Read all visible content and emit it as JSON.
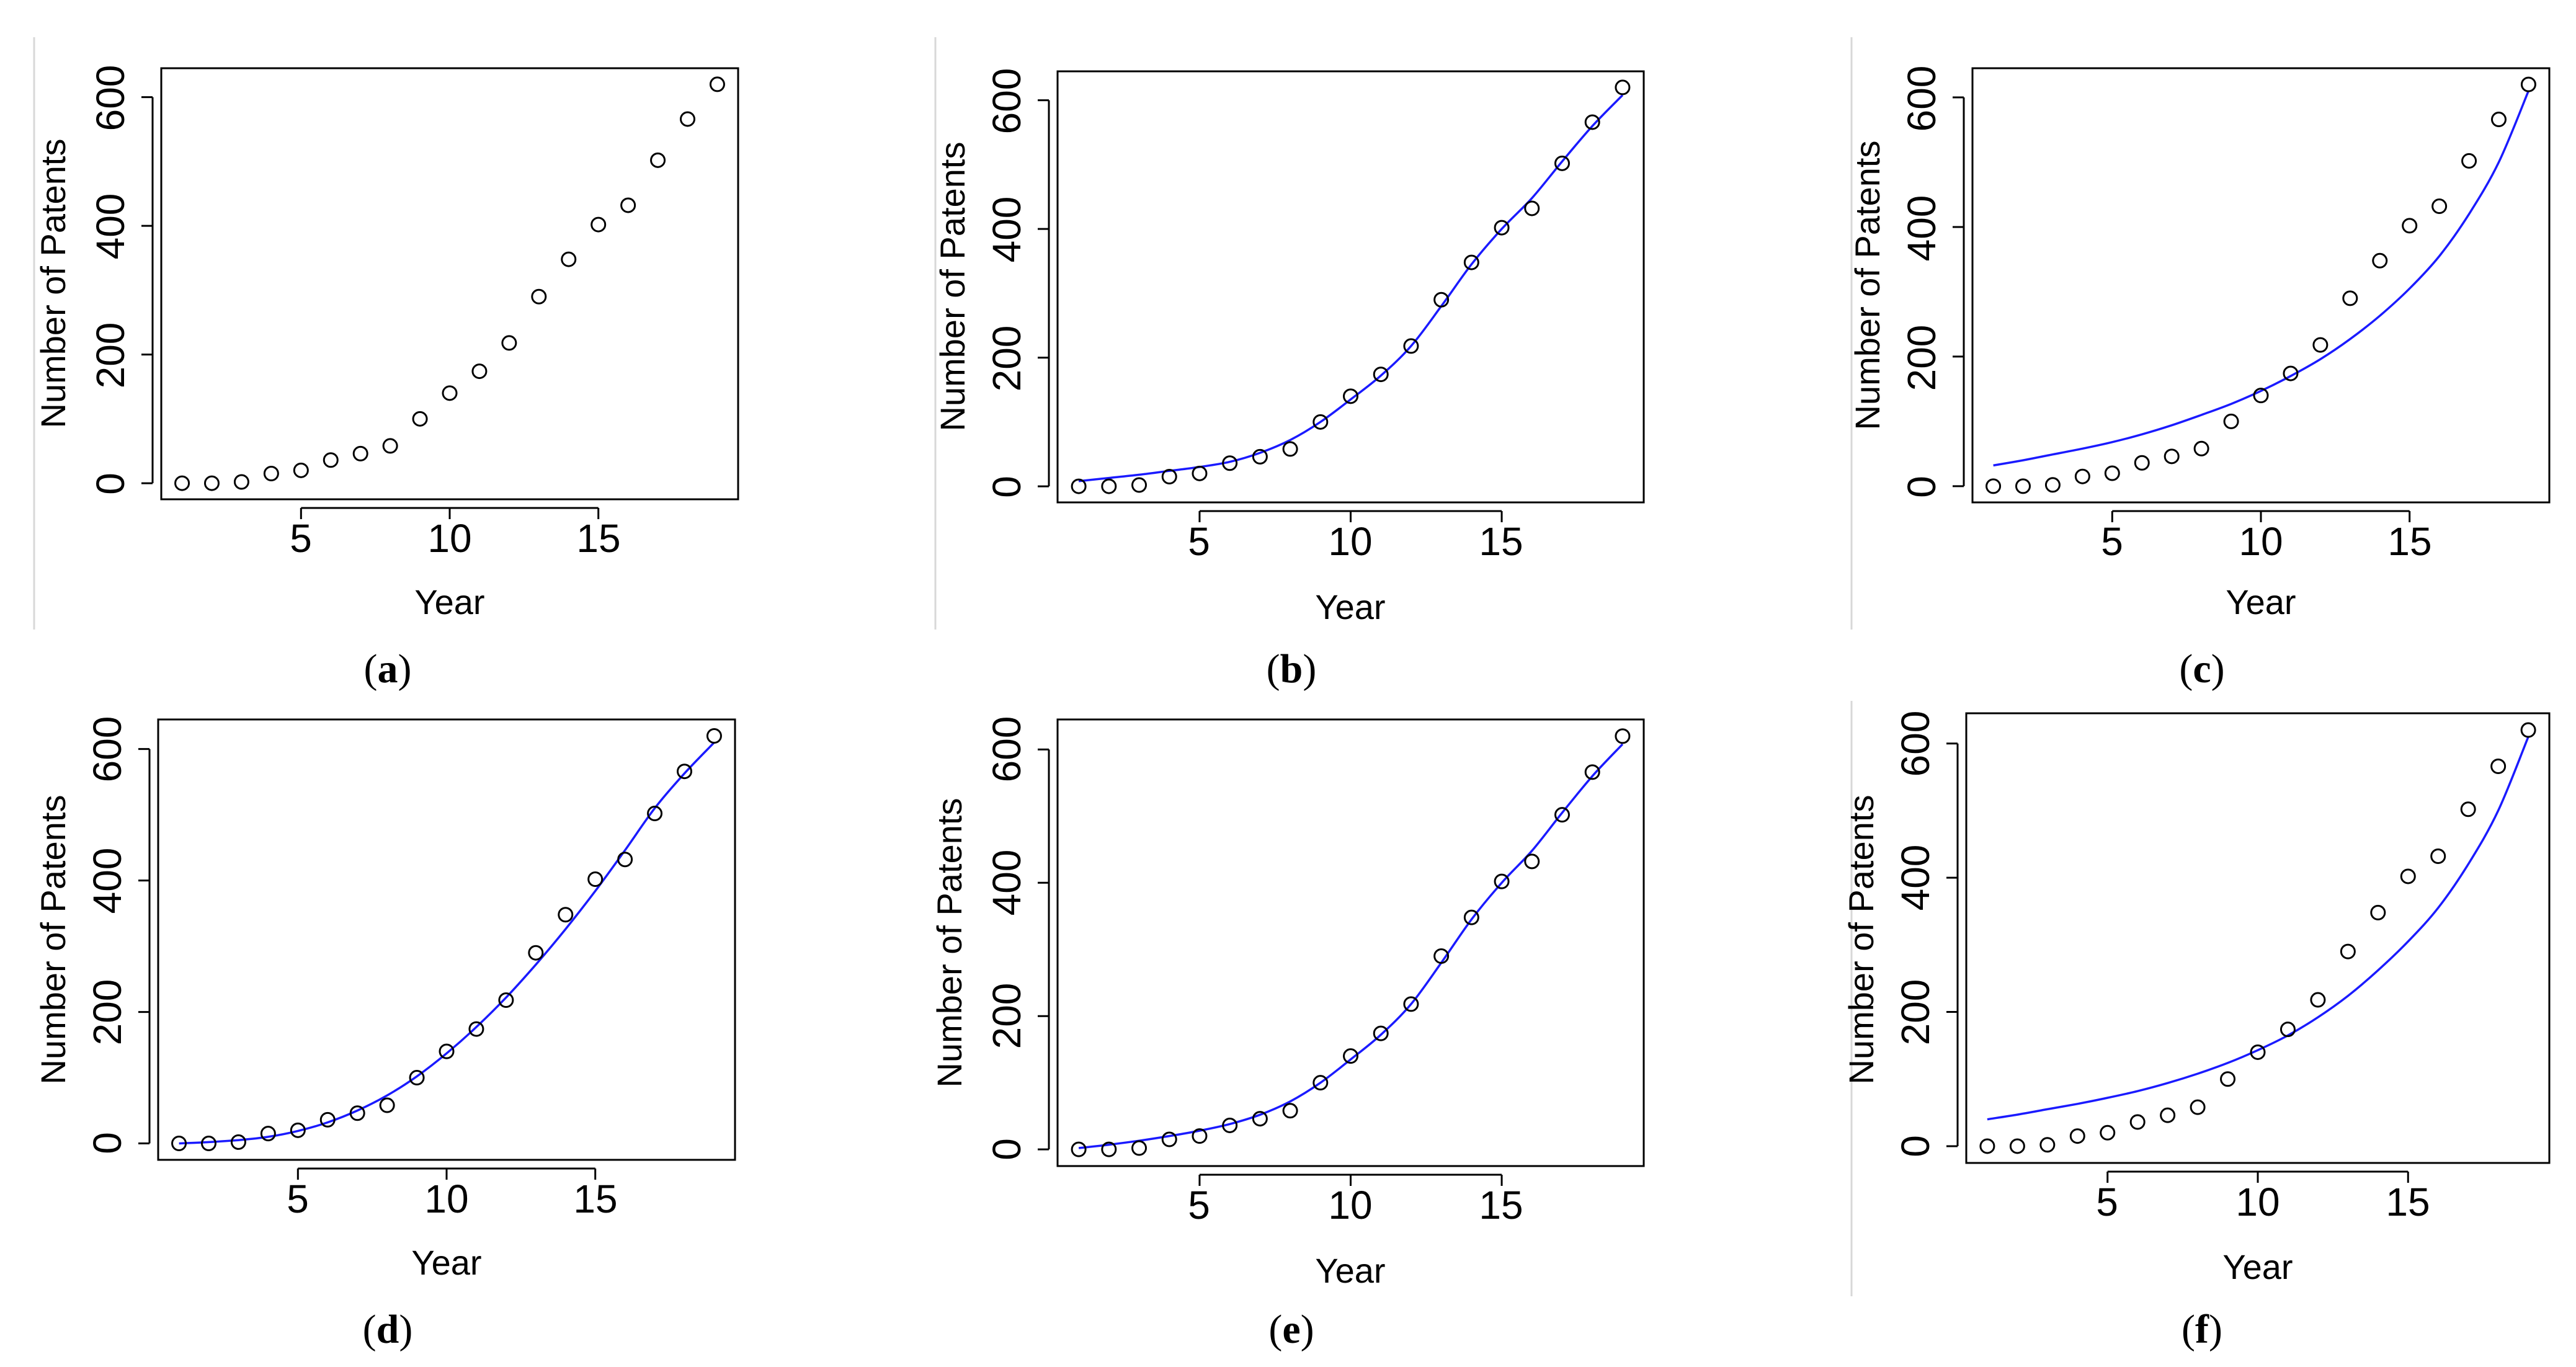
{
  "figure": {
    "marker_color": "#000000",
    "fit_color": "#1a1aff"
  },
  "chart_data": [
    {
      "id": "a",
      "type": "scatter",
      "caption": "a",
      "xlabel": "Year",
      "ylabel": "Number of Patents",
      "xlim": [
        0.3,
        19.7
      ],
      "ylim": [
        -25,
        645
      ],
      "xticks": [
        "5",
        "10",
        "15"
      ],
      "yticks": [
        "0",
        "200",
        "400",
        "600"
      ],
      "x": [
        1,
        2,
        3,
        4,
        5,
        6,
        7,
        8,
        9,
        10,
        11,
        12,
        13,
        14,
        15,
        16,
        17,
        18,
        19
      ],
      "y": [
        0,
        0,
        2,
        15,
        20,
        36,
        46,
        58,
        100,
        140,
        174,
        218,
        290,
        348,
        402,
        432,
        502,
        566,
        620
      ],
      "fit": null
    },
    {
      "id": "b",
      "type": "scatter",
      "caption": "b",
      "xlabel": "Year",
      "ylabel": "Number of Patents",
      "xlim": [
        0.3,
        19.7
      ],
      "ylim": [
        -25,
        645
      ],
      "xticks": [
        "5",
        "10",
        "15"
      ],
      "yticks": [
        "0",
        "200",
        "400",
        "600"
      ],
      "x": [
        1,
        2,
        3,
        4,
        5,
        6,
        7,
        8,
        9,
        10,
        11,
        12,
        13,
        14,
        15,
        16,
        17,
        18,
        19
      ],
      "y": [
        0,
        0,
        2,
        15,
        20,
        36,
        46,
        58,
        100,
        140,
        174,
        218,
        290,
        348,
        402,
        432,
        502,
        566,
        620
      ],
      "fit": {
        "name": "fitted curve",
        "x": [
          1,
          2,
          3,
          4,
          5,
          6,
          7,
          8,
          9,
          10,
          11,
          12,
          13,
          14,
          15,
          16,
          17,
          18,
          19
        ],
        "y": [
          8,
          13,
          18,
          24,
          30,
          38,
          52,
          72,
          100,
          135,
          172,
          218,
          280,
          345,
          400,
          448,
          505,
          560,
          608
        ]
      }
    },
    {
      "id": "c",
      "type": "scatter",
      "caption": "c",
      "xlabel": "Year",
      "ylabel": "Number of Patents",
      "xlim": [
        0.3,
        19.7
      ],
      "ylim": [
        -25,
        645
      ],
      "xticks": [
        "5",
        "10",
        "15"
      ],
      "yticks": [
        "0",
        "200",
        "400",
        "600"
      ],
      "x": [
        1,
        2,
        3,
        4,
        5,
        6,
        7,
        8,
        9,
        10,
        11,
        12,
        13,
        14,
        15,
        16,
        17,
        18,
        19
      ],
      "y": [
        0,
        0,
        2,
        15,
        20,
        36,
        46,
        58,
        100,
        140,
        174,
        218,
        290,
        348,
        402,
        432,
        502,
        566,
        620
      ],
      "fit": {
        "name": "fitted curve",
        "x": [
          1,
          2,
          3,
          4,
          5,
          6,
          7,
          8,
          9,
          10,
          11,
          12,
          13,
          14,
          15,
          16,
          17,
          18,
          19
        ],
        "y": [
          32,
          40,
          49,
          58,
          68,
          80,
          94,
          110,
          127,
          147,
          170,
          196,
          227,
          263,
          305,
          355,
          420,
          500,
          610
        ]
      }
    },
    {
      "id": "d",
      "type": "scatter",
      "caption": "d",
      "xlabel": "Year",
      "ylabel": "Number of Patents",
      "xlim": [
        0.3,
        19.7
      ],
      "ylim": [
        -25,
        645
      ],
      "xticks": [
        "5",
        "10",
        "15"
      ],
      "yticks": [
        "0",
        "200",
        "400",
        "600"
      ],
      "x": [
        1,
        2,
        3,
        4,
        5,
        6,
        7,
        8,
        9,
        10,
        11,
        12,
        13,
        14,
        15,
        16,
        17,
        18,
        19
      ],
      "y": [
        0,
        0,
        2,
        15,
        20,
        36,
        46,
        58,
        100,
        140,
        174,
        218,
        290,
        348,
        402,
        432,
        502,
        566,
        620
      ],
      "fit": {
        "name": "fitted curve",
        "x": [
          1,
          2,
          3,
          4,
          5,
          6,
          7,
          8,
          9,
          10,
          11,
          12,
          13,
          14,
          15,
          16,
          17,
          18,
          19
        ],
        "y": [
          0,
          2,
          5,
          10,
          19,
          32,
          50,
          73,
          102,
          137,
          177,
          222,
          272,
          326,
          384,
          446,
          510,
          563,
          610
        ]
      }
    },
    {
      "id": "e",
      "type": "scatter",
      "caption": "e",
      "xlabel": "Year",
      "ylabel": "Number of Patents",
      "xlim": [
        0.3,
        19.7
      ],
      "ylim": [
        -25,
        645
      ],
      "xticks": [
        "5",
        "10",
        "15"
      ],
      "yticks": [
        "0",
        "200",
        "400",
        "600"
      ],
      "x": [
        1,
        2,
        3,
        4,
        5,
        6,
        7,
        8,
        9,
        10,
        11,
        12,
        13,
        14,
        15,
        16,
        17,
        18,
        19
      ],
      "y": [
        0,
        0,
        2,
        15,
        20,
        36,
        46,
        58,
        100,
        140,
        174,
        218,
        290,
        348,
        402,
        432,
        502,
        566,
        620
      ],
      "fit": {
        "name": "fitted curve",
        "x": [
          1,
          2,
          3,
          4,
          5,
          6,
          7,
          8,
          9,
          10,
          11,
          12,
          13,
          14,
          15,
          16,
          17,
          18,
          19
        ],
        "y": [
          2,
          7,
          13,
          20,
          28,
          38,
          52,
          72,
          100,
          135,
          172,
          218,
          280,
          345,
          400,
          448,
          505,
          560,
          608
        ]
      }
    },
    {
      "id": "f",
      "type": "scatter",
      "caption": "f",
      "xlabel": "Year",
      "ylabel": "Number of Patents",
      "xlim": [
        0.3,
        19.7
      ],
      "ylim": [
        -25,
        645
      ],
      "xticks": [
        "5",
        "10",
        "15"
      ],
      "yticks": [
        "0",
        "200",
        "400",
        "600"
      ],
      "x": [
        1,
        2,
        3,
        4,
        5,
        6,
        7,
        8,
        9,
        10,
        11,
        12,
        13,
        14,
        15,
        16,
        17,
        18,
        19
      ],
      "y": [
        0,
        0,
        2,
        15,
        20,
        36,
        46,
        58,
        100,
        140,
        174,
        218,
        290,
        348,
        402,
        432,
        502,
        566,
        620
      ],
      "fit": {
        "name": "fitted curve",
        "x": [
          1,
          2,
          3,
          4,
          5,
          6,
          7,
          8,
          9,
          10,
          11,
          12,
          13,
          14,
          15,
          16,
          17,
          18,
          19
        ],
        "y": [
          40,
          47,
          55,
          63,
          72,
          82,
          94,
          108,
          124,
          143,
          165,
          192,
          224,
          262,
          305,
          355,
          420,
          500,
          610
        ]
      }
    }
  ]
}
